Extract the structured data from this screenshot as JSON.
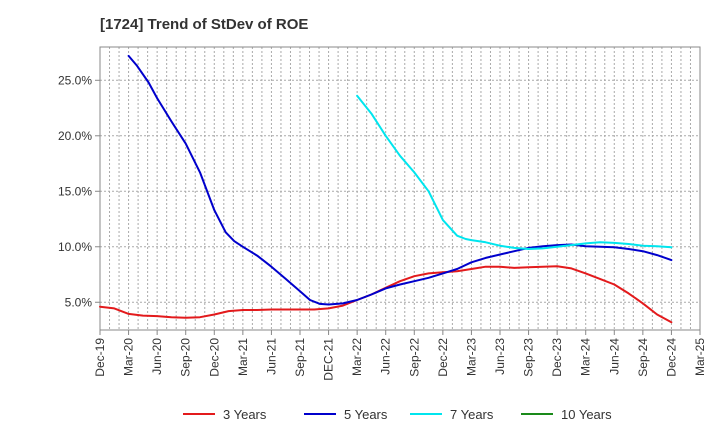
{
  "chart_data": {
    "type": "line",
    "title": "[1724]  Trend of StDev of ROE",
    "xlabel": "",
    "ylabel": "",
    "ylim": [
      2.5,
      28
    ],
    "y_ticks": [
      5,
      10,
      15,
      20,
      25
    ],
    "y_tick_labels": [
      "5.0%",
      "10.0%",
      "15.0%",
      "20.0%",
      "25.0%"
    ],
    "categories": [
      "Dec-19",
      "Mar-20",
      "Jun-20",
      "Sep-20",
      "Dec-20",
      "Mar-21",
      "Jun-21",
      "Sep-21",
      "DEC-21",
      "Mar-22",
      "Jun-22",
      "Sep-22",
      "Dec-22",
      "Mar-23",
      "Jun-23",
      "Sep-23",
      "Dec-23",
      "Mar-24",
      "Jun-24",
      "Sep-24",
      "Dec-24",
      "Mar-25"
    ],
    "grid": true,
    "legend_position": "bottom",
    "series": [
      {
        "name": "3 Years",
        "color": "#e31a1c",
        "points": [
          [
            0,
            4.6
          ],
          [
            0.5,
            4.45
          ],
          [
            1,
            3.95
          ],
          [
            1.5,
            3.8
          ],
          [
            2,
            3.75
          ],
          [
            2.5,
            3.65
          ],
          [
            3,
            3.6
          ],
          [
            3.5,
            3.65
          ],
          [
            4,
            3.9
          ],
          [
            4.5,
            4.2
          ],
          [
            5,
            4.3
          ],
          [
            5.5,
            4.3
          ],
          [
            6,
            4.35
          ],
          [
            6.5,
            4.35
          ],
          [
            7,
            4.35
          ],
          [
            7.5,
            4.35
          ],
          [
            8,
            4.45
          ],
          [
            8.5,
            4.7
          ],
          [
            9,
            5.2
          ],
          [
            9.5,
            5.7
          ],
          [
            10,
            6.3
          ],
          [
            10.5,
            6.9
          ],
          [
            11,
            7.35
          ],
          [
            11.5,
            7.6
          ],
          [
            12,
            7.7
          ],
          [
            12.5,
            7.8
          ],
          [
            13,
            8.0
          ],
          [
            13.5,
            8.2
          ],
          [
            14,
            8.2
          ],
          [
            14.5,
            8.1
          ],
          [
            15,
            8.15
          ],
          [
            15.5,
            8.2
          ],
          [
            16,
            8.25
          ],
          [
            16.5,
            8.05
          ],
          [
            17,
            7.6
          ],
          [
            17.5,
            7.1
          ],
          [
            18,
            6.6
          ],
          [
            18.5,
            5.8
          ],
          [
            19,
            4.9
          ],
          [
            19.5,
            3.9
          ],
          [
            20,
            3.2
          ]
        ]
      },
      {
        "name": "5 Years",
        "color": "#0000cc",
        "points": [
          [
            1,
            27.2
          ],
          [
            1.3,
            26.3
          ],
          [
            1.7,
            24.8
          ],
          [
            2,
            23.4
          ],
          [
            2.5,
            21.3
          ],
          [
            3,
            19.3
          ],
          [
            3.5,
            16.7
          ],
          [
            4,
            13.3
          ],
          [
            4.4,
            11.3
          ],
          [
            4.7,
            10.5
          ],
          [
            5,
            10.0
          ],
          [
            5.5,
            9.2
          ],
          [
            6,
            8.2
          ],
          [
            6.5,
            7.1
          ],
          [
            7,
            6.0
          ],
          [
            7.35,
            5.2
          ],
          [
            7.7,
            4.85
          ],
          [
            8,
            4.8
          ],
          [
            8.5,
            4.9
          ],
          [
            9,
            5.2
          ],
          [
            9.5,
            5.7
          ],
          [
            10,
            6.25
          ],
          [
            10.5,
            6.6
          ],
          [
            11,
            6.9
          ],
          [
            11.5,
            7.2
          ],
          [
            12,
            7.6
          ],
          [
            12.5,
            8.0
          ],
          [
            13,
            8.6
          ],
          [
            13.5,
            9.0
          ],
          [
            14,
            9.3
          ],
          [
            14.5,
            9.6
          ],
          [
            15,
            9.9
          ],
          [
            15.5,
            10.05
          ],
          [
            16,
            10.15
          ],
          [
            16.5,
            10.2
          ],
          [
            17,
            10.05
          ],
          [
            17.5,
            10.0
          ],
          [
            18,
            9.95
          ],
          [
            18.5,
            9.8
          ],
          [
            19,
            9.6
          ],
          [
            19.5,
            9.25
          ],
          [
            20,
            8.8
          ]
        ]
      },
      {
        "name": "7 Years",
        "color": "#00e5ee",
        "points": [
          [
            9,
            23.6
          ],
          [
            9.5,
            22.0
          ],
          [
            10,
            20.0
          ],
          [
            10.5,
            18.2
          ],
          [
            11,
            16.7
          ],
          [
            11.5,
            15.0
          ],
          [
            12,
            12.4
          ],
          [
            12.5,
            11.0
          ],
          [
            12.8,
            10.7
          ],
          [
            13,
            10.6
          ],
          [
            13.5,
            10.4
          ],
          [
            14,
            10.1
          ],
          [
            14.5,
            9.9
          ],
          [
            15,
            9.8
          ],
          [
            15.5,
            9.85
          ],
          [
            16,
            10.0
          ],
          [
            16.5,
            10.15
          ],
          [
            17,
            10.3
          ],
          [
            17.5,
            10.4
          ],
          [
            18,
            10.35
          ],
          [
            18.5,
            10.25
          ],
          [
            19,
            10.1
          ],
          [
            19.5,
            10.05
          ],
          [
            20,
            9.95
          ]
        ]
      },
      {
        "name": "10 Years",
        "color": "#1a8a1a",
        "points": []
      }
    ]
  }
}
